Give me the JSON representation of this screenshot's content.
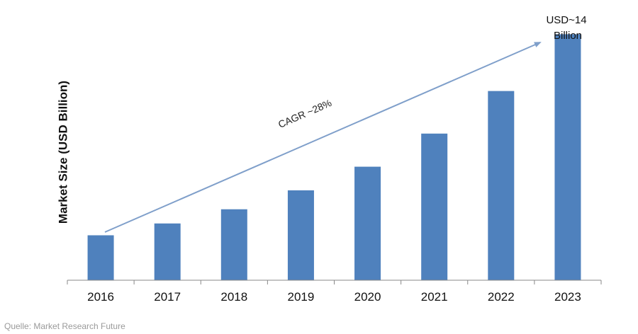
{
  "chart_data": {
    "type": "bar",
    "categories": [
      "2016",
      "2017",
      "2018",
      "2019",
      "2020",
      "2021",
      "2022",
      "2023"
    ],
    "values": [
      1.9,
      2.4,
      3.0,
      3.8,
      4.8,
      6.2,
      8.0,
      10.4
    ],
    "ylabel": "Market Size (USD Billion)",
    "xlabel": "",
    "title": "",
    "ylim": [
      0,
      11.25
    ],
    "grid": false,
    "legend": "none",
    "bar_color": "#4f81bd",
    "annotations": {
      "cagr": "CAGR ~28%",
      "final_value_line1": "USD~14",
      "final_value_line2": "Billion"
    }
  },
  "source": "Quelle: Market Research Future"
}
